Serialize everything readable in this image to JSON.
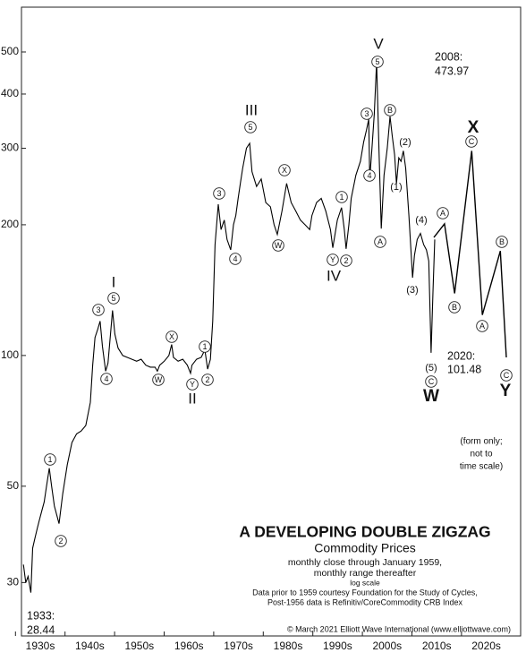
{
  "chart_data": {
    "type": "line",
    "title": "A DEVELOPING DOUBLE ZIGZAG",
    "subtitle": "Commodity Prices",
    "notes": [
      "monthly close through January 1959,",
      "monthly range thereafter",
      "log scale",
      "Data prior to 1959 courtesy Foundation for the Study of Cycles,",
      "Post-1956 data is Refinitiv/CoreCommodity CRB Index"
    ],
    "copyright": "© March 2021 Elliott Wave International (www.elliottwave.com)",
    "log_scale": true,
    "ylim": [
      22.6,
      634
    ],
    "yticks": [
      30,
      50,
      100,
      200,
      300,
      400,
      500
    ],
    "xlim": [
      1931.07,
      2039.2
    ],
    "xtick_labels": [
      "1930s",
      "1940s",
      "1950s",
      "1960s",
      "1970s",
      "1980s",
      "1990s",
      "2000s",
      "2010s",
      "2020s"
    ],
    "series": [
      {
        "color": "#000000",
        "x": [
          1931.5,
          1932,
          1932.5,
          1933.1,
          1933.5,
          1934,
          1934.5,
          1935,
          1935.5,
          1936,
          1936.5,
          1937.1,
          1937.6,
          1938.2,
          1939.2,
          1940,
          1941,
          1942,
          1943,
          1944,
          1945,
          1946,
          1946.5,
          1947,
          1947.6,
          1948.1,
          1948.6,
          1949.3,
          1949.8,
          1950.3,
          1950.8,
          1951.3,
          1952,
          1953,
          1954,
          1955,
          1956,
          1957,
          1958,
          1959,
          1960,
          1960.5,
          1961,
          1962,
          1963,
          1963.6,
          1964,
          1965,
          1966,
          1967,
          1967.7,
          1968,
          1969,
          1970,
          1970.8,
          1971.4,
          1972,
          1972.5,
          1973,
          1973.7,
          1974.3,
          1975,
          1975.6,
          1976.4,
          1977,
          1977.5,
          1978,
          1978.5,
          1979,
          1979.8,
          1980.5,
          1981,
          1982,
          1983,
          1984,
          1985,
          1985.8,
          1986.5,
          1987.5,
          1988.5,
          1989.5,
          1990.5,
          1991.5,
          1992.5,
          1993.5,
          1994,
          1995,
          1996,
          1997,
          1998,
          1998.5,
          1999,
          1999.5,
          2000.4,
          2001,
          2001.4,
          2002,
          2002.5,
          2003.5,
          2004.5,
          2005.2,
          2005.8,
          2006.3,
          2006.5,
          2007,
          2007.5,
          2008,
          2008.5,
          2009,
          2009.6,
          2010.3,
          2010.9,
          2011.4,
          2011.9,
          2012.3,
          2012.8,
          2013.3,
          2013.8,
          2014.3,
          2015,
          2015.8,
          2016.2,
          2016.8,
          2017.5,
          2018.2,
          2018.8,
          2019.3,
          2019.8,
          2020.2,
          2020.6
        ],
        "values": [
          33,
          30,
          31,
          28.44,
          36,
          38,
          40,
          42,
          44,
          46,
          50,
          55,
          50,
          45,
          41,
          48,
          56,
          63,
          66,
          67,
          69,
          78,
          95,
          110,
          115,
          120,
          105,
          92,
          96,
          110,
          127,
          112,
          104,
          100,
          99,
          98,
          97,
          98,
          95,
          94,
          94,
          92,
          95,
          97,
          100,
          106,
          99,
          97,
          98,
          95,
          91,
          95,
          98,
          99,
          103,
          93,
          98,
          120,
          180,
          223,
          195,
          205,
          185,
          175,
          200,
          210,
          230,
          250,
          270,
          300,
          308,
          265,
          245,
          255,
          225,
          220,
          200,
          190,
          215,
          249,
          225,
          215,
          205,
          200,
          195,
          210,
          225,
          230,
          215,
          195,
          177,
          190,
          205,
          219,
          195,
          176,
          200,
          230,
          260,
          280,
          310,
          330,
          350,
          255,
          300,
          360,
          473.97,
          300,
          196,
          260,
          300,
          355,
          320,
          290,
          249,
          285,
          280,
          296,
          270,
          210,
          151,
          170,
          185,
          191,
          180,
          175,
          165,
          101.48,
          140,
          185
        ]
      },
      {
        "color": "#000000",
        "x": [
          2020.4,
          2022.7,
          2024.9,
          2028.6,
          2030.9,
          2034.8,
          2036.1
        ],
        "values": [
          187,
          201,
          139,
          296,
          124,
          174,
          99
        ]
      }
    ],
    "wave_labels": [
      "1",
      "2",
      "3",
      "4",
      "5",
      "W",
      "X",
      "Y",
      "1",
      "2",
      "3",
      "4",
      "5",
      "W",
      "X",
      "Y",
      "2",
      "1",
      "3",
      "4",
      "5",
      "B",
      "A",
      "A",
      "B",
      "C",
      "A",
      "B",
      "C",
      "C"
    ],
    "degree_labels": [
      "(2)",
      "(1)",
      "(3)",
      "(4)",
      "(5)"
    ],
    "major_labels": [
      "I",
      "II",
      "III",
      "IV",
      "V",
      "W",
      "X",
      "Y"
    ],
    "point_labels": [
      "2008:",
      "473.97",
      "2020:",
      "101.48",
      "1933:",
      "28.44"
    ],
    "form_note": [
      "(form only;",
      "not to",
      "time scale)"
    ]
  }
}
